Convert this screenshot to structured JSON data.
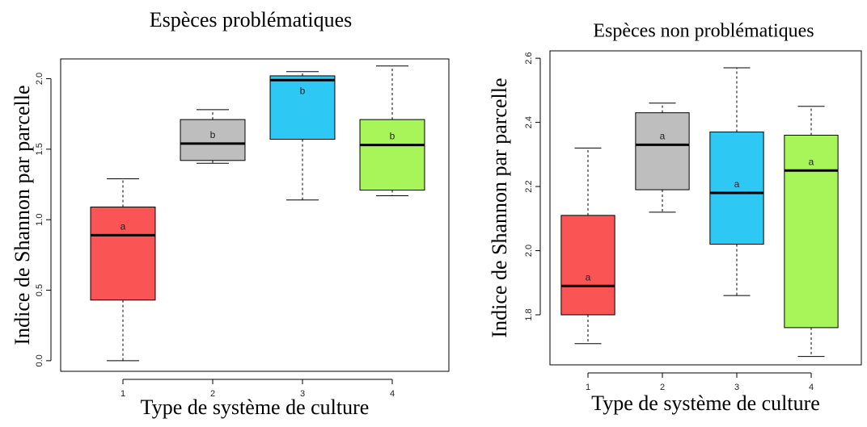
{
  "chart_data": [
    {
      "type": "box",
      "title": "Espèces problématiques",
      "x_label": "Type de système de culture",
      "y_label": "Indice de Shannon par parcelle",
      "categories": [
        "1",
        "2",
        "3",
        "4"
      ],
      "min": [
        0,
        1.4,
        1.14,
        1.17
      ],
      "q1": [
        0.43,
        1.42,
        1.57,
        1.21
      ],
      "median": [
        0.89,
        1.54,
        1.99,
        1.53
      ],
      "q3": [
        1.09,
        1.71,
        2.02,
        1.71
      ],
      "max": [
        1.29,
        1.78,
        2.05,
        2.09
      ],
      "colors": [
        "#fa5454",
        "#bebebe",
        "#2ec8f5",
        "#a8f55a"
      ],
      "annotations": [
        "a",
        "b",
        "b",
        "b"
      ],
      "ylim": [
        -0.075,
        2.14
      ],
      "yticks": [
        {
          "value": 0,
          "label": "0.0"
        },
        0.5,
        {
          "value": 1,
          "label": "1.0"
        },
        1.5,
        {
          "value": 2,
          "label": "2.0"
        }
      ]
    },
    {
      "type": "box",
      "title": "Espèces non problématiques",
      "x_label": "Type de système de culture",
      "y_label": "Indice de Shannon par parcelle",
      "categories": [
        "1",
        "2",
        "3",
        "4"
      ],
      "min": [
        1.71,
        2.12,
        1.86,
        1.67
      ],
      "q1": [
        1.8,
        2.19,
        2.02,
        1.76
      ],
      "median": [
        1.89,
        2.33,
        2.18,
        2.25
      ],
      "q3": [
        2.11,
        2.43,
        2.37,
        2.36
      ],
      "max": [
        2.32,
        2.46,
        2.57,
        2.45
      ],
      "colors": [
        "#fa5454",
        "#bebebe",
        "#2ec8f5",
        "#a8f55a"
      ],
      "annotations": [
        "a",
        "a",
        "a",
        "a"
      ],
      "ylim": [
        1.644,
        2.623
      ],
      "yticks": [
        1.8,
        {
          "value": 2,
          "label": "2.0"
        },
        2.2,
        2.4,
        2.6
      ]
    }
  ]
}
